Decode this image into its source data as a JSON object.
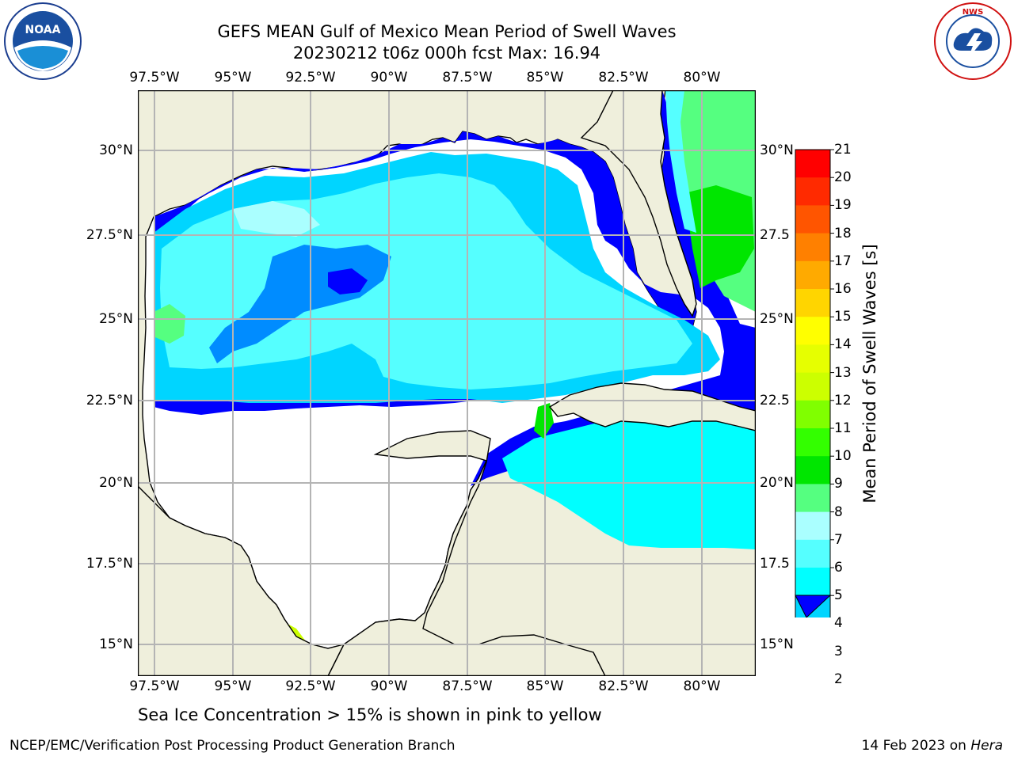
{
  "title": "GEFS MEAN Gulf of Mexico Mean Period of Swell Waves",
  "subtitle": "20230212 t06z 000h fcst   Max: 16.94",
  "caption": "Sea Ice Concentration > 15% is shown in pink to yellow",
  "footer_left": "NCEP/EMC/Verification Post Processing Product Generation Branch",
  "footer_right_date": "14 Feb 2023 on ",
  "footer_right_host": "Hera",
  "colorbar_label": "Mean Period of Swell Waves [s]",
  "logos": {
    "left": "noaa-logo",
    "right": "nws-logo"
  },
  "map": {
    "lon_ticks": [
      "97.5°W",
      "95°W",
      "92.5°W",
      "90°W",
      "87.5°W",
      "85°W",
      "82.5°W",
      "80°W"
    ],
    "lat_ticks_left": [
      "30°N",
      "27.5°N",
      "25°N",
      "22.5°N",
      "20°N",
      "17.5°N",
      "15°N"
    ],
    "lat_ticks_right": [
      "30°N",
      "27.5",
      "25°N",
      "22.5",
      "20°N",
      "17.5",
      "15°N"
    ],
    "colors": {
      "land": "#efefdc",
      "grid": "#b4b4b4",
      "ocean_nodata": "#ffffff"
    }
  },
  "colorbar": {
    "ticks": [
      "21",
      "20",
      "19",
      "18",
      "17",
      "16",
      "15",
      "14",
      "13",
      "12",
      "11",
      "10",
      "9",
      "8",
      "7",
      "6",
      "5",
      "4",
      "3",
      "2"
    ],
    "colors_top_to_bottom": [
      "#ff0000",
      "#ff2a00",
      "#ff5500",
      "#ff8000",
      "#ffaa00",
      "#ffd500",
      "#ffff00",
      "#e6ff00",
      "#ccff00",
      "#80ff00",
      "#33ff00",
      "#00e600",
      "#55ff80",
      "#aaffff",
      "#55ffff",
      "#00ffff",
      "#00d5ff",
      "#008cff",
      "#0000ff"
    ]
  }
}
